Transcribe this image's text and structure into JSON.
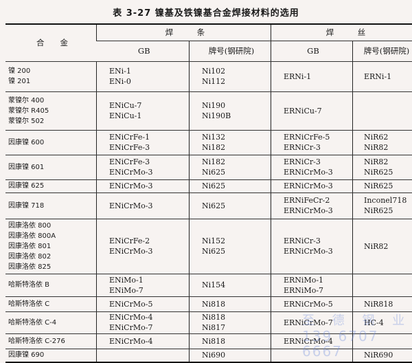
{
  "title": "表 3-27   镍基及铁镍基合金焊接材料的选用",
  "header": {
    "alloy": "合　　金",
    "electrode": "焊　　　条",
    "wire": "焊　　　丝",
    "gb": "GB",
    "grade": "牌号(钢研院)"
  },
  "rows": [
    {
      "alloy": [
        "镍 200",
        "镍 201"
      ],
      "e_gb": [
        "ENi-1",
        "ENi-0"
      ],
      "e_grade": [
        "Ni102",
        "Ni112"
      ],
      "w_gb": [
        "ERNi-1"
      ],
      "w_grade": [
        "ERNi-1"
      ],
      "h": 44
    },
    {
      "alloy": [
        "蒙镍尔 400",
        "蒙镍尔 R405",
        "蒙镍尔 502"
      ],
      "e_gb": [
        "ENiCu-7",
        "ENiCu-1"
      ],
      "e_grade": [
        "Ni190",
        "Ni190B"
      ],
      "w_gb": [
        "ERNiCu-7"
      ],
      "w_grade": [],
      "h": 56
    },
    {
      "alloy": [
        "因康镍 600"
      ],
      "e_gb": [
        "ENiCrFe-1",
        "ENiCrFe-3"
      ],
      "e_grade": [
        "Ni132",
        "Ni182"
      ],
      "w_gb": [
        "ERNiCrFe-5",
        "ERNiCr-3"
      ],
      "w_grade": [
        "NiR62",
        "NiR82"
      ],
      "h": 36
    },
    {
      "alloy": [
        "因康镍 601"
      ],
      "e_gb": [
        "ENiCrFe-3",
        "ENiCrMo-3"
      ],
      "e_grade": [
        "Ni182",
        "Ni625"
      ],
      "w_gb": [
        "ERNiCr-3",
        "ERNiCrMo-3"
      ],
      "w_grade": [
        "NiR82",
        "NiR625"
      ],
      "h": 36
    },
    {
      "alloy": [
        "因康镍 625"
      ],
      "e_gb": [
        "ENiCrMo-3"
      ],
      "e_grade": [
        "Ni625"
      ],
      "w_gb": [
        "ERNiCrMo-3"
      ],
      "w_grade": [
        "NiR625"
      ],
      "h": 19
    },
    {
      "alloy": [
        "因康镍 718"
      ],
      "e_gb": [
        "ENiCrMo-3"
      ],
      "e_grade": [
        "Ni625"
      ],
      "w_gb": [
        "ERNiFeCr-2",
        "ERNiCrMo-3"
      ],
      "w_grade": [
        "Inconel718",
        "NiR625"
      ],
      "h": 38
    },
    {
      "alloy": [
        "因康洛依 800",
        "因康洛依 800A",
        "因康洛依 801",
        "因康洛依 802",
        "因康洛依 825"
      ],
      "e_gb": [
        "ENiCrFe-2",
        "ENiCrMo-3"
      ],
      "e_grade": [
        "Ni152",
        "Ni625"
      ],
      "w_gb": [
        "ERNiCr-3",
        "ERNiCrMo-3"
      ],
      "w_grade": [
        "NiR82"
      ],
      "h": 80
    },
    {
      "alloy": [
        "哈斯特洛依 B"
      ],
      "e_gb": [
        "ENiMo-1",
        "ENiMo-7"
      ],
      "e_grade": [
        "Ni154"
      ],
      "w_gb": [
        "ERNiMo-1",
        "ERNiMo-7"
      ],
      "w_grade": [],
      "h": 33
    },
    {
      "alloy": [
        "哈斯特洛依 C"
      ],
      "e_gb": [
        "ENiCrMo-5"
      ],
      "e_grade": [
        "Ni818"
      ],
      "w_gb": [
        "ERNiCrMo-5"
      ],
      "w_grade": [
        "NiR818"
      ],
      "h": 22
    },
    {
      "alloy": [
        "哈斯特洛依 C-4"
      ],
      "e_gb": [
        "ENiCrMo-4",
        "ENiCrMo-7"
      ],
      "e_grade": [
        "Ni818",
        "Ni817"
      ],
      "w_gb": [
        "ERNiCrMo-7"
      ],
      "w_grade": [
        "HC-4"
      ],
      "h": 32
    },
    {
      "alloy": [
        "哈斯特洛依 C-276"
      ],
      "e_gb": [
        "ENiCrMo-4"
      ],
      "e_grade": [
        "Ni818"
      ],
      "w_gb": [
        "ERNiCrMo-4"
      ],
      "w_grade": [],
      "h": 22
    },
    {
      "alloy": [
        "因康镍 690"
      ],
      "e_gb": [],
      "e_grade": [
        "Ni690"
      ],
      "w_gb": [],
      "w_grade": [
        "NiR690"
      ],
      "h": 20
    }
  ],
  "watermark": {
    "company": "至 德 钢 业",
    "phone": "139 6707 6667",
    "color": "#6e8cdc"
  }
}
